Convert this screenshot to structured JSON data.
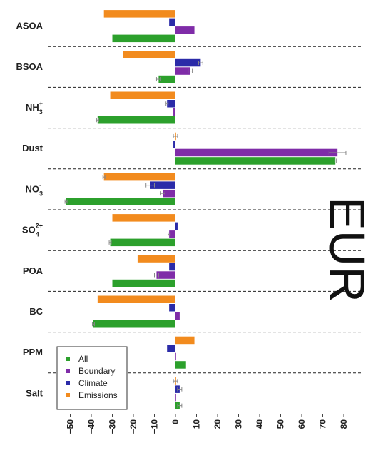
{
  "chart_data": {
    "type": "bar",
    "orientation": "horizontal",
    "region_label": "EUR",
    "categories": [
      "ASOA",
      "BSOA",
      "NH3+",
      "Dust",
      "NO3-",
      "SO42+",
      "POA",
      "BC",
      "PPM",
      "Salt"
    ],
    "category_labels": [
      {
        "base": "ASOA",
        "sub": "",
        "sup": ""
      },
      {
        "base": "BSOA",
        "sub": "",
        "sup": ""
      },
      {
        "base": "NH",
        "sub": "3",
        "sup": "+"
      },
      {
        "base": "Dust",
        "sub": "",
        "sup": ""
      },
      {
        "base": "NO",
        "sub": "3",
        "sup": "-"
      },
      {
        "base": "SO",
        "sub": "4",
        "sup": "2+"
      },
      {
        "base": "POA",
        "sub": "",
        "sup": ""
      },
      {
        "base": "BC",
        "sub": "",
        "sup": ""
      },
      {
        "base": "PPM",
        "sub": "",
        "sup": ""
      },
      {
        "base": "Salt",
        "sub": "",
        "sup": ""
      }
    ],
    "series": [
      {
        "name": "All",
        "color": "#2ca02c",
        "values": [
          -30,
          -8,
          -37,
          76,
          -52,
          -31,
          -30,
          -39,
          5,
          2
        ],
        "errors": [
          0,
          1,
          0.5,
          0.5,
          0.5,
          0.5,
          0,
          0.5,
          0,
          1
        ]
      },
      {
        "name": "Boundary",
        "color": "#7f2ca8",
        "values": [
          9,
          7,
          -1,
          77,
          -6,
          -3,
          -9,
          2,
          0,
          0
        ],
        "errors": [
          0,
          1,
          0,
          4,
          1,
          0.5,
          1,
          0,
          0,
          0
        ]
      },
      {
        "name": "Climate",
        "color": "#2b2ba8",
        "values": [
          -3,
          12,
          -4,
          -1,
          -12,
          1,
          -3,
          -3,
          -4,
          2
        ],
        "errors": [
          0,
          1,
          0.5,
          0,
          2,
          0,
          0,
          0,
          0,
          1
        ]
      },
      {
        "name": "Emissions",
        "color": "#f28b1e",
        "values": [
          -34,
          -25,
          -31,
          0,
          -34,
          -30,
          -18,
          -37,
          9,
          0
        ],
        "errors": [
          0,
          0,
          0,
          1,
          0.5,
          0,
          0,
          0,
          0,
          1
        ]
      }
    ],
    "xticks": [
      -50,
      -40,
      -30,
      -20,
      -10,
      0,
      10,
      20,
      30,
      40,
      50,
      60,
      70,
      80
    ],
    "xlim": [
      -58,
      83
    ],
    "legend_position": "bottom-left",
    "grid": false
  }
}
